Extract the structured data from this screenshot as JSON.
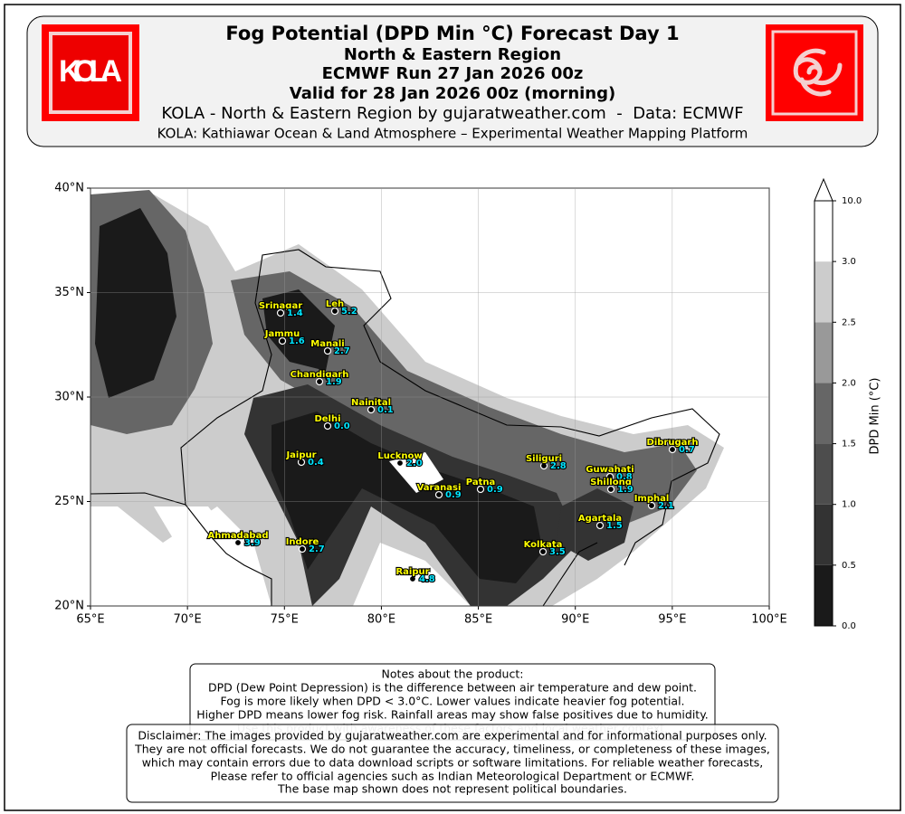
{
  "header": {
    "logo": "KOLA",
    "title": "Fog Potential (DPD Min °C) Forecast Day 1",
    "lines": [
      "North & Eastern Region",
      "ECMWF Run 27 Jan 2026 00z",
      "Valid for 28 Jan 2026 00z (morning)"
    ],
    "credit": "KOLA - North & Eastern Region by gujaratweather.com  -  Data: ECMWF",
    "platform": "KOLA: Kathiawar Ocean & Land Atmosphere – Experimental Weather Mapping Platform"
  },
  "map": {
    "xlim": [
      65,
      100
    ],
    "ylim": [
      20,
      40
    ],
    "xticks": [
      {
        "value": 65,
        "label": "65°E"
      },
      {
        "value": 70,
        "label": "70°E"
      },
      {
        "value": 75,
        "label": "75°E"
      },
      {
        "value": 80,
        "label": "80°E"
      },
      {
        "value": 85,
        "label": "85°E"
      },
      {
        "value": 90,
        "label": "90°E"
      },
      {
        "value": 95,
        "label": "95°E"
      },
      {
        "value": 100,
        "label": "100°E"
      }
    ],
    "yticks": [
      {
        "value": 20,
        "label": "20°N"
      },
      {
        "value": 25,
        "label": "25°N"
      },
      {
        "value": 30,
        "label": "30°N"
      },
      {
        "value": 35,
        "label": "35°N"
      },
      {
        "value": 40,
        "label": "40°N"
      }
    ],
    "grid": true,
    "cities": [
      {
        "name": "Srinagar",
        "value": "1.4"
      },
      {
        "name": "Leh",
        "value": "5.2"
      },
      {
        "name": "Jammu",
        "value": "1.6"
      },
      {
        "name": "Manali",
        "value": "2.7"
      },
      {
        "name": "Chandigarh",
        "value": "1.9"
      },
      {
        "name": "Nainital",
        "value": "0.1"
      },
      {
        "name": "Delhi",
        "value": "0.0"
      },
      {
        "name": "Jaipur",
        "value": "0.4"
      },
      {
        "name": "Lucknow",
        "value": "2.0"
      },
      {
        "name": "Varanasi",
        "value": "0.9"
      },
      {
        "name": "Patna",
        "value": "0.9"
      },
      {
        "name": "Siliguri",
        "value": "2.8"
      },
      {
        "name": "Guwahati",
        "value": "0.8"
      },
      {
        "name": "Shillong",
        "value": "1.9"
      },
      {
        "name": "Dibrugarh",
        "value": "0.7"
      },
      {
        "name": "Imphal",
        "value": "2.1"
      },
      {
        "name": "Agartala",
        "value": "1.5"
      },
      {
        "name": "Kolkata",
        "value": "3.5"
      },
      {
        "name": "Ahmadabad",
        "value": "3.9"
      },
      {
        "name": "Indore",
        "value": "2.7"
      },
      {
        "name": "Raipur",
        "value": "4.8"
      }
    ]
  },
  "colorbar": {
    "label": "DPD Min (°C)",
    "ticks": [
      {
        "value": 0,
        "label": "0.0"
      },
      {
        "value": 0.5,
        "label": "0.5"
      },
      {
        "value": 1,
        "label": "1.0"
      },
      {
        "value": 1.5,
        "label": "1.5"
      },
      {
        "value": 2,
        "label": "2.0"
      },
      {
        "value": 2.5,
        "label": "2.5"
      },
      {
        "value": 3,
        "label": "3.0"
      },
      {
        "value": 10,
        "label": "10.0"
      }
    ],
    "colors": [
      "#1a1a1a",
      "#333333",
      "#4d4d4d",
      "#666666",
      "#999999",
      "#cccccc",
      "#ffffff"
    ]
  },
  "notes": {
    "title": "Notes about the product:",
    "lines": [
      "DPD (Dew Point Depression) is the difference between air temperature and dew point.",
      "Fog is more likely when DPD < 3.0°C. Lower values indicate heavier fog potential.",
      "Higher DPD means lower fog risk. Rainfall areas may show false positives due to humidity.",
      "Use this product with awareness of these factors and local weather context."
    ]
  },
  "disclaimer": {
    "lines": [
      "Disclaimer: The images provided by gujaratweather.com are experimental and for informational purposes only.",
      "They are not official forecasts. We do not guarantee the accuracy, timeliness, or completeness of these images,",
      "which may contain errors due to data download scripts or software limitations. For reliable weather forecasts,",
      "Please refer to official agencies such as Indian Meteorological Department or ECMWF.",
      "The base map shown does not represent political boundaries."
    ]
  }
}
